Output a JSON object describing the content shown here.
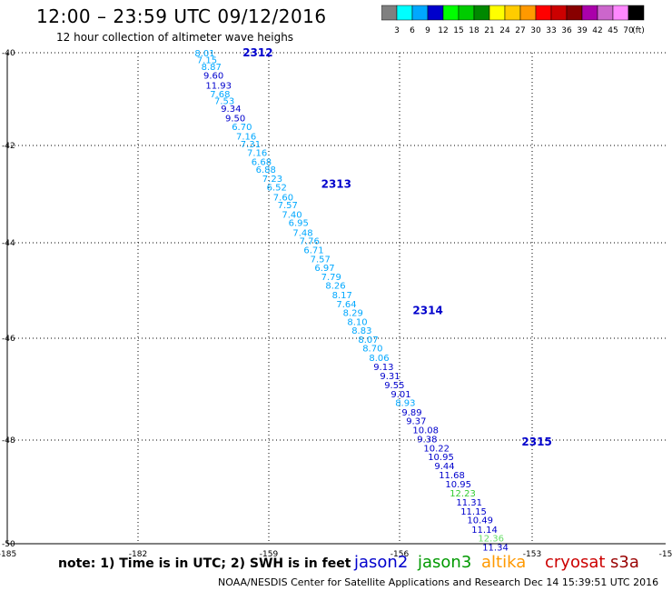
{
  "header": {
    "title": "12:00 – 23:59 UTC 09/12/2016",
    "subtitle": "12 hour collection of altimeter wave heighs"
  },
  "color_scale": {
    "colors": [
      "#808080",
      "#00ffff",
      "#00a8ff",
      "#0000cc",
      "#00ff00",
      "#00cc00",
      "#008800",
      "#ffff00",
      "#ffcc00",
      "#ff9900",
      "#ff0000",
      "#cc0000",
      "#880000",
      "#aa00aa",
      "#cc66cc",
      "#ff88ff",
      "#000000"
    ],
    "labels": [
      "3",
      "6",
      "9",
      "12",
      "15",
      "18",
      "21",
      "24",
      "27",
      "30",
      "33",
      "36",
      "39",
      "42",
      "45",
      "70"
    ],
    "unit": "(ft)"
  },
  "footer": {
    "note": "note:  1) Time is in UTC;  2) SWH is in feet",
    "credit": "NOAA/NESDIS Center for Satellite Applications and Research     Dec 14 15:39:51 UTC 2016"
  },
  "satellites": [
    {
      "name": "jason2",
      "color": "#0000cc"
    },
    {
      "name": "jason3",
      "color": "#009900"
    },
    {
      "name": "altika",
      "color": "#ff9900"
    },
    {
      "name": "cryosat",
      "color": "#cc0000"
    },
    {
      "name": "s3a",
      "color": "#990000"
    }
  ],
  "chart_data": {
    "type": "scatter",
    "x_ticks": [
      "-185",
      "-182",
      "-159",
      "-156",
      "-153",
      "-15"
    ],
    "y_ticks": [
      "-40",
      "-42",
      "-44",
      "-46",
      "-48",
      "-50"
    ],
    "grid": true,
    "pass_labels": [
      {
        "text": "2312",
        "x": -159.6,
        "y": -40.0
      },
      {
        "text": "2313",
        "x": -157.8,
        "y": -42.7
      },
      {
        "text": "2314",
        "x": -155.7,
        "y": -45.3
      },
      {
        "text": "2315",
        "x": -153.2,
        "y": -48.0
      }
    ],
    "points": [
      {
        "v": "8.01",
        "x": -160.7,
        "y": -40.0,
        "c": "#00a8ff"
      },
      {
        "v": "7.15",
        "x": -160.65,
        "y": -40.14,
        "c": "#00a8ff"
      },
      {
        "v": "8.87",
        "x": -160.55,
        "y": -40.28,
        "c": "#00a8ff"
      },
      {
        "v": "9.60",
        "x": -160.5,
        "y": -40.46,
        "c": "#0000cc"
      },
      {
        "v": "11.93",
        "x": -160.45,
        "y": -40.66,
        "c": "#0000cc"
      },
      {
        "v": "7.68",
        "x": -160.35,
        "y": -40.84,
        "c": "#00a8ff"
      },
      {
        "v": "7.53",
        "x": -160.25,
        "y": -40.98,
        "c": "#00a8ff"
      },
      {
        "v": "9.34",
        "x": -160.1,
        "y": -41.14,
        "c": "#0000cc"
      },
      {
        "v": "9.50",
        "x": -160.0,
        "y": -41.34,
        "c": "#0000cc"
      },
      {
        "v": "6.70",
        "x": -159.85,
        "y": -41.51,
        "c": "#00a8ff"
      },
      {
        "v": "7.16",
        "x": -159.75,
        "y": -41.71,
        "c": "#00a8ff"
      },
      {
        "v": "7.31",
        "x": -159.65,
        "y": -41.87,
        "c": "#00a8ff"
      },
      {
        "v": "7.16",
        "x": -159.5,
        "y": -42.05,
        "c": "#00a8ff"
      },
      {
        "v": "6.68",
        "x": -159.4,
        "y": -42.23,
        "c": "#00a8ff"
      },
      {
        "v": "6.88",
        "x": -159.3,
        "y": -42.39,
        "c": "#00a8ff"
      },
      {
        "v": "7.23",
        "x": -159.15,
        "y": -42.58,
        "c": "#00a8ff"
      },
      {
        "v": "6.52",
        "x": -159.05,
        "y": -42.76,
        "c": "#00a8ff"
      },
      {
        "v": "7.60",
        "x": -158.9,
        "y": -42.96,
        "c": "#00a8ff"
      },
      {
        "v": "7.57",
        "x": -158.8,
        "y": -43.12,
        "c": "#00a8ff"
      },
      {
        "v": "7.40",
        "x": -158.7,
        "y": -43.32,
        "c": "#00a8ff"
      },
      {
        "v": "6.95",
        "x": -158.55,
        "y": -43.49,
        "c": "#00a8ff"
      },
      {
        "v": "7.48",
        "x": -158.45,
        "y": -43.69,
        "c": "#00a8ff"
      },
      {
        "v": "7.76",
        "x": -158.3,
        "y": -43.86,
        "c": "#00a8ff"
      },
      {
        "v": "6.71",
        "x": -158.2,
        "y": -44.05,
        "c": "#00a8ff"
      },
      {
        "v": "7.57",
        "x": -158.05,
        "y": -44.23,
        "c": "#00a8ff"
      },
      {
        "v": "6.97",
        "x": -157.95,
        "y": -44.41,
        "c": "#00a8ff"
      },
      {
        "v": "7.79",
        "x": -157.8,
        "y": -44.6,
        "c": "#00a8ff"
      },
      {
        "v": "8.26",
        "x": -157.7,
        "y": -44.78,
        "c": "#00a8ff"
      },
      {
        "v": "8.17",
        "x": -157.55,
        "y": -44.97,
        "c": "#00a8ff"
      },
      {
        "v": "7.64",
        "x": -157.45,
        "y": -45.16,
        "c": "#00a8ff"
      },
      {
        "v": "8.29",
        "x": -157.3,
        "y": -45.34,
        "c": "#00a8ff"
      },
      {
        "v": "8.10",
        "x": -157.2,
        "y": -45.52,
        "c": "#00a8ff"
      },
      {
        "v": "8.83",
        "x": -157.1,
        "y": -45.7,
        "c": "#00a8ff"
      },
      {
        "v": "8.07",
        "x": -156.95,
        "y": -45.89,
        "c": "#00a8ff"
      },
      {
        "v": "8.70",
        "x": -156.85,
        "y": -46.07,
        "c": "#00a8ff"
      },
      {
        "v": "8.06",
        "x": -156.7,
        "y": -46.26,
        "c": "#00a8ff"
      },
      {
        "v": "9.13",
        "x": -156.6,
        "y": -46.45,
        "c": "#0000cc"
      },
      {
        "v": "9.31",
        "x": -156.45,
        "y": -46.64,
        "c": "#0000cc"
      },
      {
        "v": "9.55",
        "x": -156.35,
        "y": -46.82,
        "c": "#0000cc"
      },
      {
        "v": "9.01",
        "x": -156.2,
        "y": -47.01,
        "c": "#0000cc"
      },
      {
        "v": "8.93",
        "x": -156.1,
        "y": -47.19,
        "c": "#00a8ff"
      },
      {
        "v": "9.89",
        "x": -155.95,
        "y": -47.38,
        "c": "#0000cc"
      },
      {
        "v": "9.37",
        "x": -155.85,
        "y": -47.56,
        "c": "#0000cc"
      },
      {
        "v": "10.08",
        "x": -155.7,
        "y": -47.75,
        "c": "#0000cc"
      },
      {
        "v": "9.38",
        "x": -155.6,
        "y": -47.93,
        "c": "#0000cc"
      },
      {
        "v": "10.22",
        "x": -155.45,
        "y": -48.12,
        "c": "#0000cc"
      },
      {
        "v": "10.95",
        "x": -155.35,
        "y": -48.3,
        "c": "#0000cc"
      },
      {
        "v": "9.44",
        "x": -155.2,
        "y": -48.49,
        "c": "#0000cc"
      },
      {
        "v": "11.68",
        "x": -155.1,
        "y": -48.67,
        "c": "#0000cc"
      },
      {
        "v": "10.95",
        "x": -154.95,
        "y": -48.86,
        "c": "#0000cc"
      },
      {
        "v": "12.23",
        "x": -154.85,
        "y": -49.05,
        "c": "#33cc33"
      },
      {
        "v": "11.31",
        "x": -154.7,
        "y": -49.23,
        "c": "#0000cc"
      },
      {
        "v": "11.15",
        "x": -154.6,
        "y": -49.42,
        "c": "#0000cc"
      },
      {
        "v": "10.49",
        "x": -154.45,
        "y": -49.6,
        "c": "#0000cc"
      },
      {
        "v": "11.14",
        "x": -154.35,
        "y": -49.79,
        "c": "#0000cc"
      },
      {
        "v": "12.36",
        "x": -154.2,
        "y": -49.97,
        "c": "#66dd66"
      },
      {
        "v": "11.34",
        "x": -154.1,
        "y": -50.16,
        "c": "#0000cc"
      }
    ]
  }
}
